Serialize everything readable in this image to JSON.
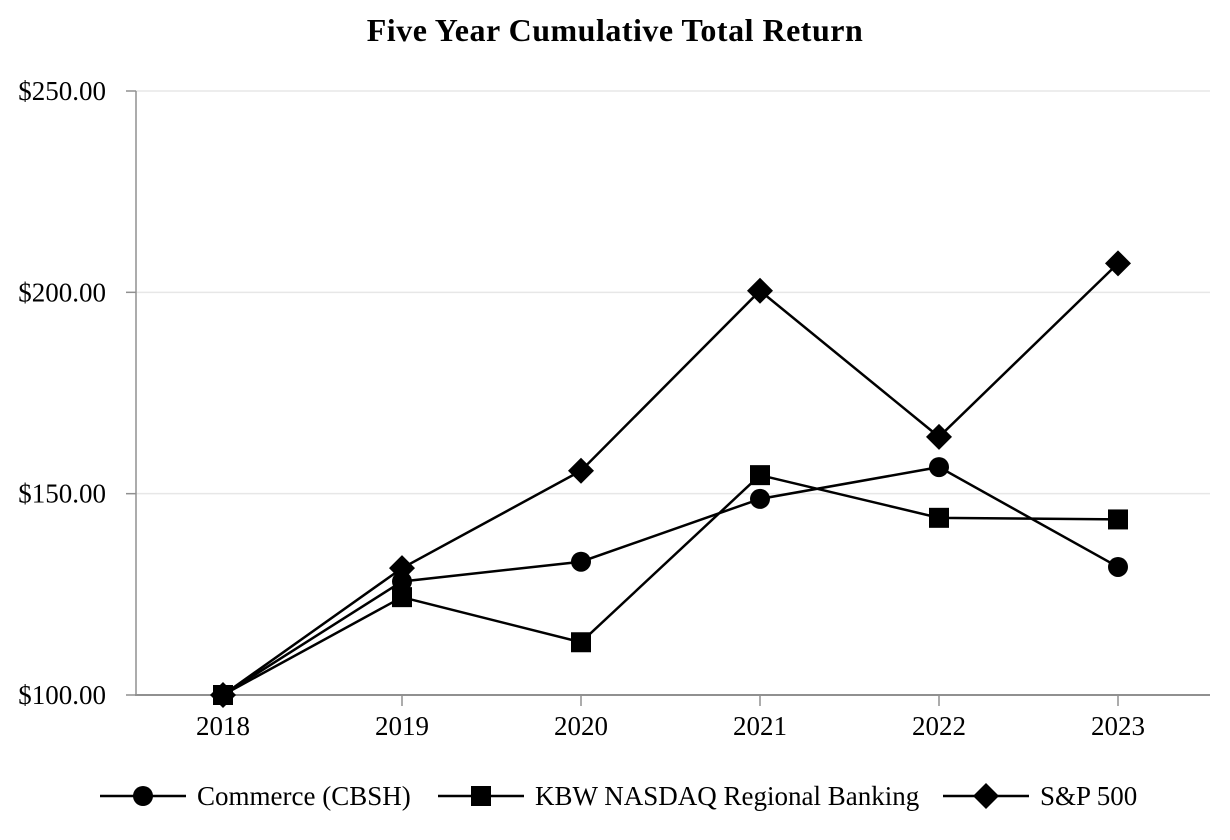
{
  "page": {
    "background": "#ffffff"
  },
  "chart_data": {
    "type": "line",
    "title": "Five Year Cumulative Total Return",
    "x_tick_labels": [
      "2018",
      "2019",
      "2020",
      "2021",
      "2022",
      "2023"
    ],
    "y_ticks": [
      100,
      150,
      200,
      250
    ],
    "y_tick_labels": [
      "$100.00",
      "$150.00",
      "$200.00",
      "$250.00"
    ],
    "ylim": [
      100,
      250
    ],
    "grid": "horizontal",
    "legend_position": "bottom",
    "axis_color": "#909090",
    "gridline_color": "#e7e7e7",
    "line_color": "#000000",
    "series": [
      {
        "name": "Commerce (CBSH)",
        "marker": "circle",
        "color": "#000000",
        "values": [
          100.0,
          128.2,
          133.1,
          148.7,
          156.6,
          131.8
        ]
      },
      {
        "name": "KBW NASDAQ Regional Banking",
        "marker": "square",
        "color": "#000000",
        "values": [
          100.0,
          124.3,
          113.1,
          154.6,
          144.0,
          143.6
        ]
      },
      {
        "name": "S&P 500",
        "marker": "diamond",
        "color": "#000000",
        "values": [
          100.0,
          131.5,
          155.7,
          200.4,
          164.1,
          207.2
        ]
      }
    ]
  }
}
